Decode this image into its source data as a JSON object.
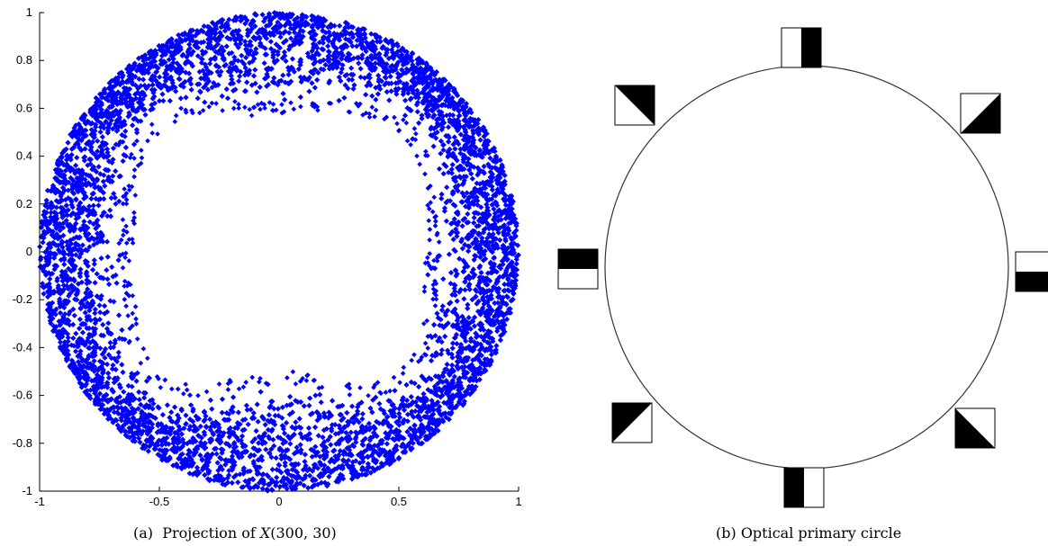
{
  "captions": {
    "left_prefix": "(a)  Projection of ",
    "left_var": "X",
    "left_args": "(300, 30)",
    "right": "(b)  Optical primary circle"
  },
  "chart_data": [
    {
      "type": "scatter",
      "title": "",
      "xlabel": "",
      "ylabel": "",
      "xlim": [
        -1,
        1
      ],
      "ylim": [
        -1,
        1
      ],
      "grid": false,
      "marker_color": "#0000ff",
      "xticks": [
        -1,
        -0.5,
        0,
        0.5,
        1
      ],
      "xtick_labels": [
        "-1",
        "-0.5",
        "0",
        "0.5",
        "1"
      ],
      "yticks": [
        1,
        0.8,
        0.6,
        0.4,
        0.2,
        0,
        -0.2,
        -0.4,
        -0.6,
        -0.8,
        -1
      ],
      "ytick_labels": [
        "1",
        "0.8",
        "0.6",
        "0.4",
        "0.2",
        "0",
        "-0.2",
        "-0.4",
        "-0.6",
        "-0.8",
        "-1"
      ],
      "points": {
        "description": "dense annulus of points between radius ~0.65 and 1.0, inner boundary bulging inward near top (y~0.62 at x=0) and bottom (y~-0.55 at x=0)",
        "outer_radius": 1.0,
        "inner_radius_side": 0.67,
        "inner_radius_top": 0.65,
        "inner_radius_bottom": 0.55
      }
    },
    {
      "type": "diagram",
      "title": "",
      "shape": "circle",
      "patches": [
        {
          "name": "patch-top",
          "angle_deg": 90,
          "pattern": "vertical-white-black"
        },
        {
          "name": "patch-top-right",
          "angle_deg": 45,
          "pattern": "diag-white-black-up"
        },
        {
          "name": "patch-right",
          "angle_deg": 0,
          "pattern": "horizontal-white-black"
        },
        {
          "name": "patch-bottom-right",
          "angle_deg": -45,
          "pattern": "diag-white-black-down"
        },
        {
          "name": "patch-bottom",
          "angle_deg": -90,
          "pattern": "vertical-black-white"
        },
        {
          "name": "patch-bottom-left",
          "angle_deg": -135,
          "pattern": "diag-black-white-up"
        },
        {
          "name": "patch-left",
          "angle_deg": 180,
          "pattern": "horizontal-black-white"
        },
        {
          "name": "patch-top-left",
          "angle_deg": 135,
          "pattern": "diag-black-white-down"
        }
      ]
    }
  ]
}
